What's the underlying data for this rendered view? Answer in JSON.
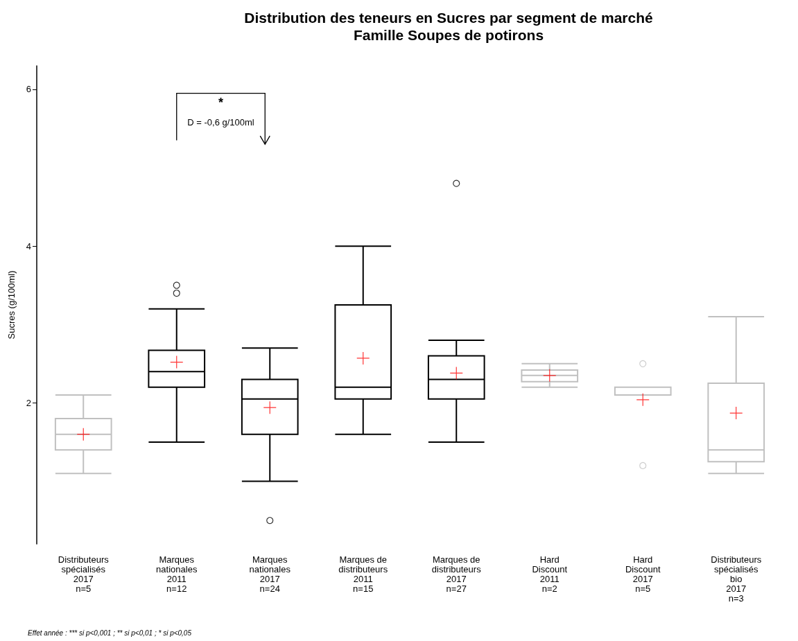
{
  "chart_data": {
    "type": "box",
    "title": "Distribution des teneurs en Sucres par segment de marché\nFamille Soupes de potirons",
    "ylabel": "Sucres (g/100ml)",
    "categories": [
      "Distributeurs\nspécialisés\n2017\nn=5",
      "Marques\nnationales\n2011\nn=12",
      "Marques\nnationales\n2017\nn=24",
      "Marques de\ndistributeurs\n2011\nn=15",
      "Marques de\ndistributeurs\n2017\nn=27",
      "Hard\nDiscount\n2011\nn=2",
      "Hard\nDiscount\n2017\nn=5",
      "Distributeurs\nspécialisés\nbio\n2017\nn=3"
    ],
    "boxes": [
      {
        "low": 1.1,
        "q1": 1.4,
        "median": 1.6,
        "q3": 1.8,
        "high": 2.1,
        "mean": 1.6
      },
      {
        "low": 1.5,
        "q1": 2.2,
        "median": 2.4,
        "q3": 2.67,
        "high": 3.2,
        "mean": 2.52,
        "outliers": [
          3.4,
          3.5
        ]
      },
      {
        "low": 1.0,
        "q1": 1.6,
        "median": 2.05,
        "q3": 2.3,
        "high": 2.7,
        "mean": 1.94,
        "outliers": [
          0.5
        ]
      },
      {
        "low": 1.6,
        "q1": 2.05,
        "median": 2.2,
        "q3": 3.25,
        "high": 4.0,
        "mean": 2.57
      },
      {
        "low": 1.5,
        "q1": 2.05,
        "median": 2.3,
        "q3": 2.6,
        "high": 2.8,
        "mean": 2.38,
        "outliers": [
          4.8
        ]
      },
      {
        "low": 2.2,
        "q1": 2.27,
        "median": 2.35,
        "q3": 2.42,
        "high": 2.5,
        "mean": 2.35
      },
      {
        "low": 2.1,
        "q1": 2.1,
        "median": 2.2,
        "q3": 2.2,
        "high": 2.2,
        "mean": 2.04,
        "outliers": [
          1.2,
          2.5
        ]
      },
      {
        "low": 1.1,
        "q1": 1.25,
        "median": 1.4,
        "q3": 2.25,
        "high": 3.1,
        "mean": 1.87
      }
    ],
    "colors": [
      "#c0c0c0",
      "#000000",
      "#000000",
      "#000000",
      "#000000",
      "#c0c0c0",
      "#c0c0c0",
      "#c0c0c0"
    ],
    "ylim": [
      0.2,
      6.3
    ],
    "yticks": [
      2,
      4,
      6
    ],
    "grid": false,
    "annotations": [
      "*",
      "D = -0,6 g/100ml",
      "Effet année : *** si p<0,001 ; ** si p<0,01 ; * si p<0,05"
    ]
  }
}
